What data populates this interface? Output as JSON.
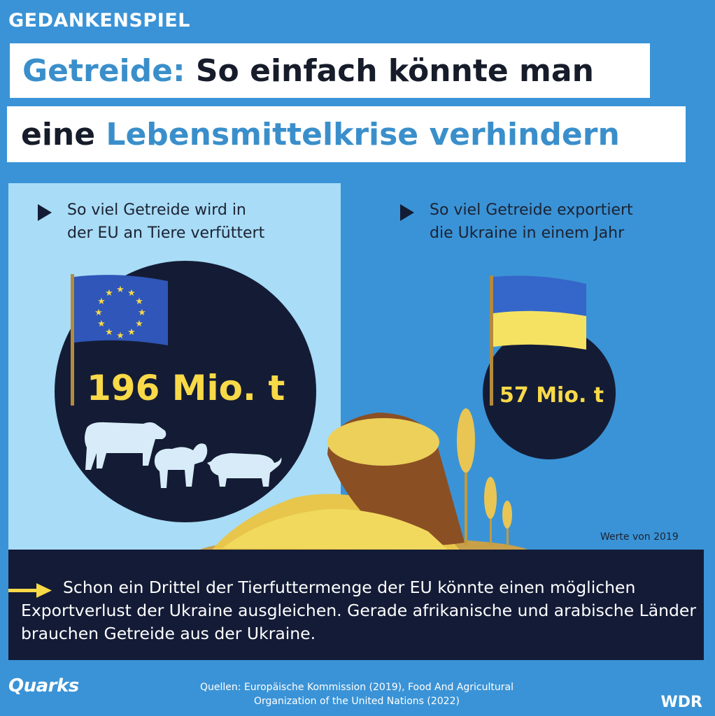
{
  "header": {
    "kicker": "GEDANKENSPIEL",
    "title_line1_accent": "Getreide:",
    "title_line1_rest": " So einfach könnte man",
    "title_line2_start": "eine ",
    "title_line2_accent": "Lebensmittelkrise verhindern"
  },
  "left_panel": {
    "heading_line1": "So viel Getreide wird in",
    "heading_line2": "der EU an Tiere verfüttert",
    "value": "196 Mio. t",
    "flag_icon": "eu-flag-icon"
  },
  "right_panel": {
    "heading_line1": "So viel Getreide exportiert",
    "heading_line2": "die Ukraine in einem Jahr",
    "value": "57 Mio. t",
    "flag_icon": "ukraine-flag-icon"
  },
  "note": "Werte von 2019",
  "conclusion": "Schon ein Drittel der Tierfuttermenge der EU könnte einen möglichen Exportverlust der Ukraine ausgleichen. Gerade afrikanische und arabische Länder brauchen Getreide aus der Ukraine.",
  "footer": {
    "sources_line1": "Quellen:  Europäische Kommission (2019), Food And Agricultural",
    "sources_line2": "Organization of the United Nations (2022)",
    "logo_left": "Quarks",
    "logo_right": "WDR"
  },
  "colors": {
    "background": "#3a93d6",
    "accent_blue": "#3a8fcb",
    "navy": "#131b36",
    "yellow": "#f8d948",
    "panel": "#a9dcf6"
  }
}
